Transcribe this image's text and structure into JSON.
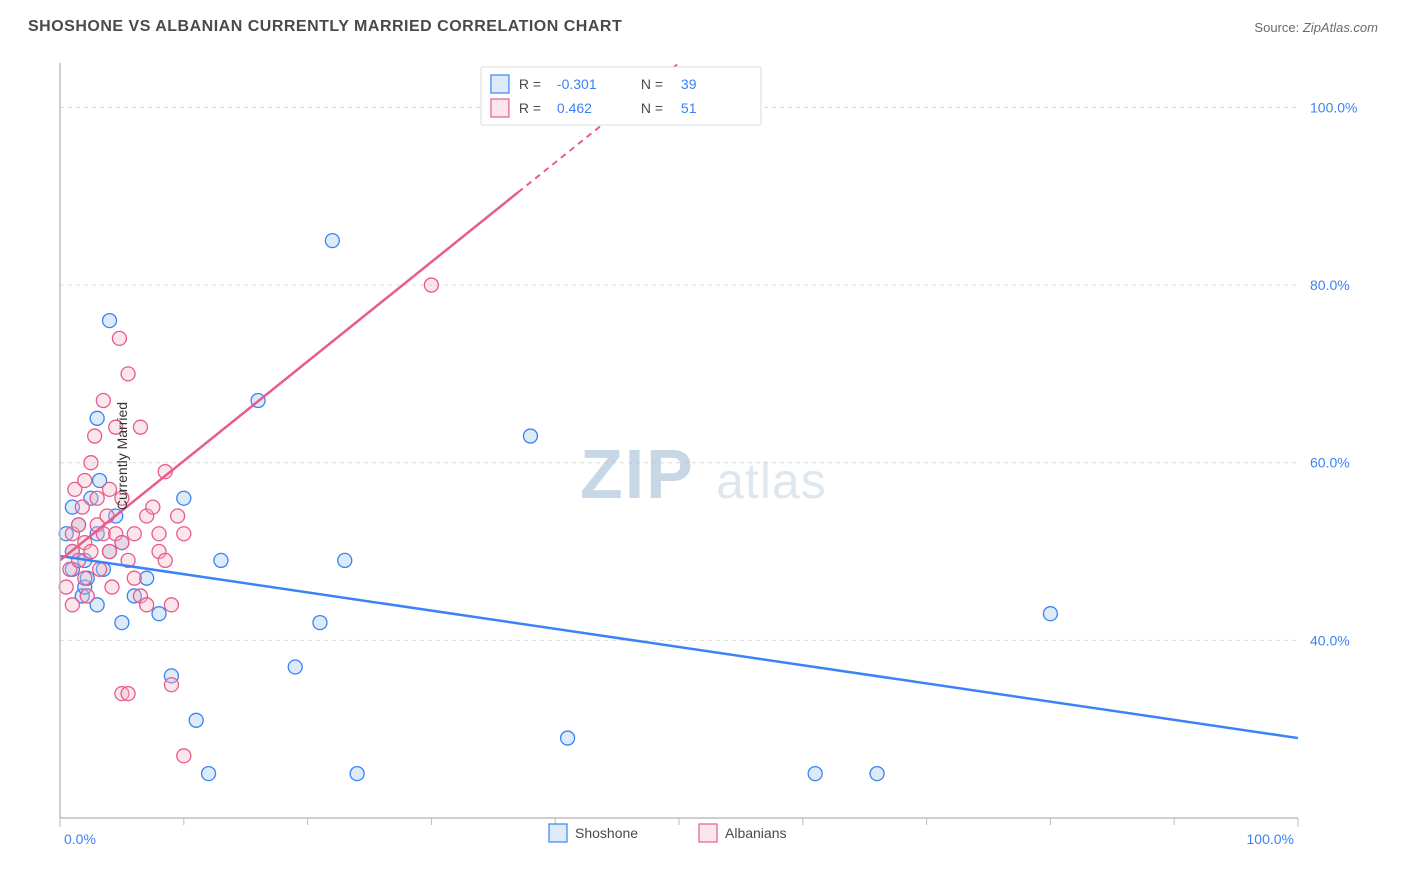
{
  "title": "SHOSHONE VS ALBANIAN CURRENTLY MARRIED CORRELATION CHART",
  "source_label": "Source:",
  "source_value": "ZipAtlas.com",
  "ylabel": "Currently Married",
  "watermark_big": "ZIP",
  "watermark_small": "atlas",
  "chart": {
    "type": "scatter",
    "background_color": "#ffffff",
    "grid_color": "#dcdcdc",
    "axis_color": "#bdbdbd",
    "label_color": "#3b82f6",
    "xlim": [
      0,
      100
    ],
    "ylim": [
      20,
      105
    ],
    "x_ticks_major_pct": [
      0,
      100
    ],
    "x_ticks_minor_pct": [
      10,
      20,
      30,
      40,
      50,
      60,
      70,
      80,
      90
    ],
    "y_ticks_pct": [
      40,
      60,
      80,
      100
    ],
    "x_tick_labels": [
      "0.0%",
      "100.0%"
    ],
    "y_tick_labels": [
      "40.0%",
      "60.0%",
      "80.0%",
      "100.0%"
    ],
    "series": [
      {
        "name": "Shoshone",
        "color_fill": "#9ec5ec",
        "color_stroke": "#3b82f6",
        "R": -0.301,
        "N": 39,
        "R_text": "-0.301",
        "N_text": "39",
        "trend": {
          "x1": 0,
          "y1": 49.5,
          "x2": 100,
          "y2": 29.0,
          "solid_to_x": 100
        },
        "points": [
          [
            0.5,
            52
          ],
          [
            1,
            50
          ],
          [
            1,
            48
          ],
          [
            1,
            55
          ],
          [
            1.5,
            53
          ],
          [
            1.8,
            45
          ],
          [
            2,
            49
          ],
          [
            2,
            46
          ],
          [
            2.5,
            56
          ],
          [
            3,
            65
          ],
          [
            3,
            52
          ],
          [
            3,
            44
          ],
          [
            3.5,
            48
          ],
          [
            4,
            50
          ],
          [
            4,
            76
          ],
          [
            4.5,
            54
          ],
          [
            5,
            51
          ],
          [
            5,
            42
          ],
          [
            6,
            45
          ],
          [
            7,
            47
          ],
          [
            8,
            43
          ],
          [
            9,
            36
          ],
          [
            10,
            56
          ],
          [
            11,
            31
          ],
          [
            12,
            25
          ],
          [
            13,
            49
          ],
          [
            16,
            67
          ],
          [
            19,
            37
          ],
          [
            21,
            42
          ],
          [
            22,
            85
          ],
          [
            23,
            49
          ],
          [
            24,
            25
          ],
          [
            38,
            63
          ],
          [
            41,
            29
          ],
          [
            61,
            25
          ],
          [
            66,
            25
          ],
          [
            80,
            43
          ],
          [
            2.2,
            47
          ],
          [
            3.2,
            58
          ]
        ]
      },
      {
        "name": "Albanians",
        "color_fill": "#f4b7c6",
        "color_stroke": "#e75c8d",
        "R": 0.462,
        "N": 51,
        "R_text": "0.462",
        "N_text": "51",
        "trend": {
          "x1": 0,
          "y1": 49.0,
          "x2": 50,
          "y2": 105.0,
          "solid_to_x": 37
        },
        "points": [
          [
            0.5,
            46
          ],
          [
            0.8,
            48
          ],
          [
            1,
            50
          ],
          [
            1,
            44
          ],
          [
            1,
            52
          ],
          [
            1.2,
            57
          ],
          [
            1.5,
            49
          ],
          [
            1.5,
            53
          ],
          [
            1.8,
            55
          ],
          [
            2,
            47
          ],
          [
            2,
            51
          ],
          [
            2,
            58
          ],
          [
            2.2,
            45
          ],
          [
            2.5,
            50
          ],
          [
            2.5,
            60
          ],
          [
            2.8,
            63
          ],
          [
            3,
            53
          ],
          [
            3,
            56
          ],
          [
            3.2,
            48
          ],
          [
            3.5,
            52
          ],
          [
            3.5,
            67
          ],
          [
            3.8,
            54
          ],
          [
            4,
            50
          ],
          [
            4,
            57
          ],
          [
            4.2,
            46
          ],
          [
            4.5,
            64
          ],
          [
            4.5,
            52
          ],
          [
            4.8,
            74
          ],
          [
            5,
            56
          ],
          [
            5,
            51
          ],
          [
            5,
            34
          ],
          [
            5.5,
            70
          ],
          [
            5.5,
            49
          ],
          [
            6,
            52
          ],
          [
            6,
            47
          ],
          [
            6.5,
            45
          ],
          [
            6.5,
            64
          ],
          [
            7,
            54
          ],
          [
            7.5,
            55
          ],
          [
            8,
            50
          ],
          [
            8,
            52
          ],
          [
            8.5,
            59
          ],
          [
            9,
            35
          ],
          [
            9,
            44
          ],
          [
            9.5,
            54
          ],
          [
            10,
            52
          ],
          [
            10,
            27
          ],
          [
            5.5,
            34
          ],
          [
            7,
            44
          ],
          [
            8.5,
            49
          ],
          [
            30,
            80
          ]
        ]
      }
    ],
    "legend_top": {
      "entries": [
        {
          "series_index": 0,
          "r_label": "R =",
          "n_label": "N ="
        },
        {
          "series_index": 1,
          "r_label": "R =",
          "n_label": "N ="
        }
      ]
    },
    "legend_bottom": {
      "entries": [
        {
          "series_index": 0
        },
        {
          "series_index": 1
        }
      ]
    }
  }
}
